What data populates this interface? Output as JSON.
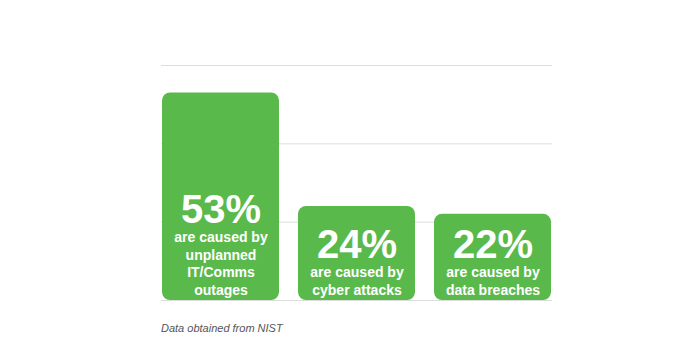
{
  "chart_data": {
    "type": "bar",
    "categories": [
      "are caused by\nunplanned\nIT/Comms\noutages",
      "are caused by\ncyber attacks",
      "are caused by\ndata breaches"
    ],
    "values": [
      53,
      24,
      22
    ],
    "value_labels": [
      "53%",
      "24%",
      "22%"
    ],
    "data_labels": true,
    "color": "#5ab94b",
    "ylim": [
      0,
      60
    ],
    "yticks": [
      0,
      20,
      40,
      60
    ],
    "grid": true,
    "tick_labels": false,
    "caption": "Data obtained from NIST"
  }
}
